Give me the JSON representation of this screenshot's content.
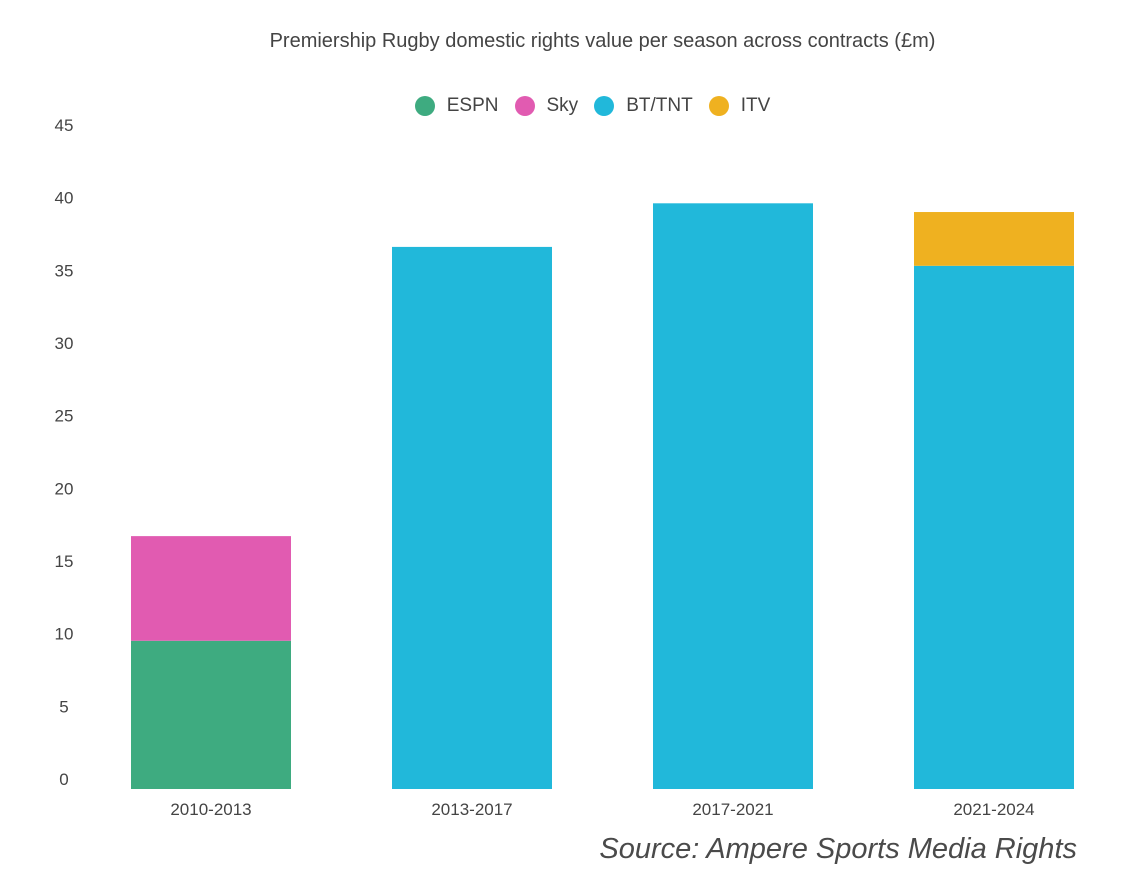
{
  "chart_data": {
    "type": "bar",
    "stacked": true,
    "title": "Premiership Rugby domestic rights value per season across contracts (£m)",
    "categories": [
      "2010-2013",
      "2013-2017",
      "2017-2021",
      "2021-2024"
    ],
    "series": [
      {
        "name": "ESPN",
        "color": "#3eab80",
        "values": [
          10.2,
          0,
          0,
          0
        ]
      },
      {
        "name": "Sky",
        "color": "#e15bb1",
        "values": [
          7.2,
          0,
          0,
          0
        ]
      },
      {
        "name": "BT/TNT",
        "color": "#21b8da",
        "values": [
          0,
          37.3,
          40.3,
          36.0
        ]
      },
      {
        "name": "ITV",
        "color": "#efb120",
        "values": [
          0,
          0,
          0,
          3.7
        ]
      }
    ],
    "y_ticks": [
      "0",
      "5",
      "10",
      "15",
      "20",
      "25",
      "30",
      "35",
      "40",
      "45"
    ],
    "ylim": [
      0,
      45
    ],
    "xlabel": "",
    "ylabel": "",
    "grid": false,
    "legend_position": "top-center"
  },
  "source": "Source: Ampere Sports Media Rights"
}
